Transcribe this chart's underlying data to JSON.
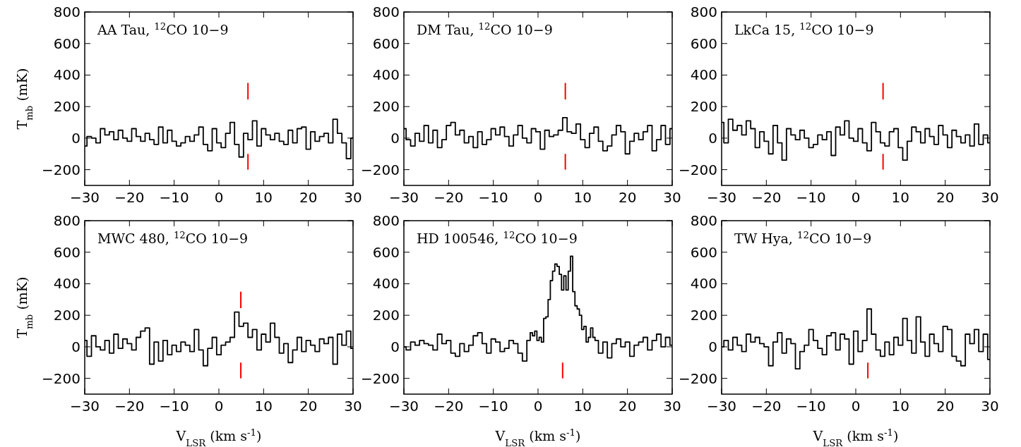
{
  "chart_data": [
    {
      "type": "step",
      "title": "AA Tau, $^{12}$CO 10−9",
      "ylabel": "T$_{mb}$ (mK)",
      "xlim": [
        -30,
        30
      ],
      "ylim": [
        -300,
        800
      ],
      "xticks": [
        -30,
        -20,
        -10,
        0,
        10,
        20,
        30
      ],
      "yticks": [
        -200,
        0,
        200,
        400,
        600,
        800
      ],
      "x": [
        -30,
        -29,
        -28,
        -27,
        -26,
        -25,
        -24,
        -23,
        -22,
        -21,
        -20,
        -19,
        -18,
        -17,
        -16,
        -15,
        -14,
        -13,
        -12,
        -11,
        -10,
        -9,
        -8,
        -7,
        -6,
        -5,
        -4,
        -3,
        -2,
        -1,
        0,
        1,
        2,
        3,
        4,
        5,
        6,
        7,
        8,
        9,
        10,
        11,
        12,
        13,
        14,
        15,
        16,
        17,
        18,
        19,
        20,
        21,
        22,
        23,
        24,
        25,
        26,
        27,
        28,
        29,
        30
      ],
      "series": [
        {
          "color": "#000000",
          "values": [
            -50,
            10,
            0,
            -30,
            60,
            20,
            40,
            -10,
            50,
            0,
            -20,
            60,
            10,
            -20,
            30,
            -10,
            -40,
            70,
            -30,
            50,
            -20,
            -50,
            -30,
            10,
            -20,
            20,
            70,
            -40,
            -80,
            60,
            -30,
            -60,
            30,
            100,
            -40,
            -120,
            30,
            -10,
            110,
            -50,
            60,
            20,
            -10,
            30,
            -20,
            -40,
            50,
            -30,
            60,
            70,
            -70,
            40,
            -20,
            10,
            30,
            -30,
            120,
            30,
            -30,
            -130,
            0
          ]
        },
        {
          "type": "line",
          "color": "#ff0000",
          "x": [
            6.5,
            6.5
          ],
          "values": [
            245,
            350
          ]
        },
        {
          "type": "line",
          "color": "#ff0000",
          "x": [
            6.5,
            6.5
          ],
          "values": [
            -200,
            -100
          ]
        }
      ]
    },
    {
      "type": "step",
      "title": "DM Tau, $^{12}$CO 10−9",
      "xlim": [
        -30,
        30
      ],
      "ylim": [
        -300,
        800
      ],
      "xticks": [
        -30,
        -20,
        -10,
        0,
        10,
        20,
        30
      ],
      "yticks": [
        -200,
        0,
        200,
        400,
        600,
        800
      ],
      "x": [
        -30,
        -29,
        -28,
        -27,
        -26,
        -25,
        -24,
        -23,
        -22,
        -21,
        -20,
        -19,
        -18,
        -17,
        -16,
        -15,
        -14,
        -13,
        -12,
        -11,
        -10,
        -9,
        -8,
        -7,
        -6,
        -5,
        -4,
        -3,
        -2,
        -1,
        0,
        1,
        2,
        3,
        4,
        5,
        6,
        7,
        8,
        9,
        10,
        11,
        12,
        13,
        14,
        15,
        16,
        17,
        18,
        19,
        20,
        21,
        22,
        23,
        24,
        25,
        26,
        27,
        28,
        29,
        30
      ],
      "series": [
        {
          "color": "#000000",
          "values": [
            60,
            -10,
            -50,
            30,
            -20,
            80,
            -30,
            50,
            -60,
            -10,
            80,
            100,
            20,
            50,
            -30,
            10,
            -60,
            40,
            -40,
            -10,
            60,
            20,
            70,
            10,
            -50,
            20,
            80,
            0,
            -30,
            60,
            40,
            -70,
            50,
            10,
            20,
            50,
            130,
            40,
            30,
            90,
            -10,
            -60,
            30,
            70,
            -20,
            -80,
            -50,
            20,
            80,
            40,
            -100,
            -20,
            30,
            -10,
            40,
            80,
            -80,
            -10,
            80,
            -40,
            60
          ]
        },
        {
          "type": "line",
          "color": "#ff0000",
          "x": [
            6.1,
            6.1
          ],
          "values": [
            245,
            350
          ]
        },
        {
          "type": "line",
          "color": "#ff0000",
          "x": [
            6.1,
            6.1
          ],
          "values": [
            -200,
            -100
          ]
        }
      ]
    },
    {
      "type": "step",
      "title": "LkCa 15, $^{12}$CO 10−9",
      "xlim": [
        -30,
        30
      ],
      "ylim": [
        -300,
        800
      ],
      "xticks": [
        -30,
        -20,
        -10,
        0,
        10,
        20,
        30
      ],
      "yticks": [
        -200,
        0,
        200,
        400,
        600,
        800
      ],
      "x": [
        -30,
        -29,
        -28,
        -27,
        -26,
        -25,
        -24,
        -23,
        -22,
        -21,
        -20,
        -19,
        -18,
        -17,
        -16,
        -15,
        -14,
        -13,
        -12,
        -11,
        -10,
        -9,
        -8,
        -7,
        -6,
        -5,
        -4,
        -3,
        -2,
        -1,
        0,
        1,
        2,
        3,
        4,
        5,
        6,
        7,
        8,
        9,
        10,
        11,
        12,
        13,
        14,
        15,
        16,
        17,
        18,
        19,
        20,
        21,
        22,
        23,
        24,
        25,
        26,
        27,
        28,
        29,
        30
      ],
      "series": [
        {
          "color": "#000000",
          "values": [
            100,
            -30,
            120,
            50,
            80,
            20,
            110,
            60,
            -60,
            40,
            -20,
            -100,
            80,
            -30,
            -140,
            60,
            20,
            -10,
            50,
            0,
            -60,
            -40,
            20,
            -10,
            40,
            -110,
            70,
            20,
            110,
            0,
            -20,
            60,
            -30,
            -80,
            100,
            40,
            -30,
            -50,
            40,
            60,
            -60,
            -140,
            -20,
            70,
            40,
            -30,
            60,
            10,
            -40,
            80,
            20,
            -60,
            50,
            10,
            -30,
            20,
            -50,
            90,
            -40,
            20,
            -30
          ]
        },
        {
          "type": "line",
          "color": "#ff0000",
          "x": [
            6.1,
            6.1
          ],
          "values": [
            245,
            350
          ]
        },
        {
          "type": "line",
          "color": "#ff0000",
          "x": [
            6.1,
            6.1
          ],
          "values": [
            -200,
            -100
          ]
        }
      ]
    },
    {
      "type": "step",
      "title": "MWC 480, $^{12}$CO 10−9",
      "xlabel": "V$_{LSR}$ (km s$^{-1}$)",
      "ylabel": "T$_{mb}$ (mK)",
      "xlim": [
        -30,
        30
      ],
      "ylim": [
        -300,
        800
      ],
      "xticks": [
        -30,
        -20,
        -10,
        0,
        10,
        20,
        30
      ],
      "yticks": [
        -200,
        0,
        200,
        400,
        600,
        800
      ],
      "x": [
        -30,
        -29,
        -28,
        -27,
        -26,
        -25,
        -24,
        -23,
        -22,
        -21,
        -20,
        -19,
        -18,
        -17,
        -16,
        -15,
        -14,
        -13,
        -12,
        -11,
        -10,
        -9,
        -8,
        -7,
        -6,
        -5,
        -4,
        -3,
        -2,
        -1,
        0,
        1,
        2,
        3,
        4,
        5,
        6,
        7,
        8,
        9,
        10,
        11,
        12,
        13,
        14,
        15,
        16,
        17,
        18,
        19,
        20,
        21,
        22,
        23,
        24,
        25,
        26,
        27,
        28,
        29,
        30
      ],
      "series": [
        {
          "color": "#000000",
          "values": [
            40,
            -60,
            70,
            0,
            -20,
            40,
            -40,
            80,
            -10,
            50,
            20,
            -20,
            60,
            100,
            120,
            -110,
            30,
            -90,
            40,
            -50,
            10,
            -30,
            30,
            10,
            -30,
            110,
            -20,
            -120,
            -10,
            60,
            -50,
            10,
            30,
            60,
            220,
            130,
            150,
            60,
            110,
            -20,
            80,
            30,
            150,
            60,
            -40,
            20,
            -100,
            -20,
            60,
            -30,
            40,
            10,
            -30,
            50,
            20,
            60,
            -110,
            80,
            10,
            100,
            -10
          ]
        },
        {
          "type": "line",
          "color": "#ff0000",
          "x": [
            4.9,
            4.9
          ],
          "values": [
            245,
            350
          ]
        },
        {
          "type": "line",
          "color": "#ff0000",
          "x": [
            4.9,
            4.9
          ],
          "values": [
            -200,
            -100
          ]
        }
      ]
    },
    {
      "type": "step",
      "title": "HD 100546, $^{12}$CO 10−9",
      "xlabel": "V$_{LSR}$ (km s$^{-1}$)",
      "xlim": [
        -30,
        30
      ],
      "ylim": [
        -300,
        800
      ],
      "xticks": [
        -30,
        -20,
        -10,
        0,
        10,
        20,
        30
      ],
      "yticks": [
        -200,
        0,
        200,
        400,
        600,
        800
      ],
      "series": [
        {
          "color": "#000000",
          "x": [
            -30,
            -29,
            -28,
            -27,
            -26,
            -25,
            -24,
            -23,
            -22,
            -21,
            -20,
            -19,
            -18,
            -17,
            -16,
            -15,
            -14,
            -13,
            -12,
            -11,
            -10,
            -9,
            -8,
            -7,
            -6,
            -5,
            -4,
            -3,
            -2,
            -1.5,
            -1,
            -0.5,
            0,
            0.5,
            1,
            1.5,
            2,
            2.5,
            3,
            3.5,
            4,
            4.5,
            5,
            5.5,
            6,
            6.5,
            7,
            7.5,
            8,
            8.5,
            9,
            9.5,
            10,
            10.5,
            11,
            11.5,
            12,
            12.5,
            13,
            14,
            15,
            16,
            17,
            18,
            19,
            20,
            21,
            22,
            23,
            24,
            25,
            26,
            27,
            28,
            29,
            30
          ],
          "values": [
            0,
            -20,
            30,
            10,
            40,
            20,
            10,
            -20,
            80,
            20,
            40,
            -40,
            -60,
            20,
            -30,
            10,
            70,
            90,
            20,
            -40,
            50,
            30,
            -30,
            -10,
            40,
            20,
            -40,
            -90,
            40,
            90,
            70,
            100,
            40,
            60,
            30,
            180,
            190,
            300,
            420,
            480,
            525,
            510,
            460,
            360,
            450,
            360,
            480,
            575,
            350,
            260,
            240,
            200,
            110,
            130,
            30,
            60,
            120,
            60,
            40,
            -40,
            30,
            -70,
            20,
            50,
            0,
            30,
            -60,
            10,
            30,
            60,
            -20,
            40,
            80,
            0,
            60,
            10
          ]
        },
        {
          "type": "line",
          "color": "#ff0000",
          "x": [
            5.5,
            5.5
          ],
          "values": [
            -200,
            -100
          ]
        }
      ]
    },
    {
      "type": "step",
      "title": "TW Hya, $^{12}$CO 10−9",
      "xlabel": "V$_{LSR}$ (km s$^{-1}$)",
      "xlim": [
        -30,
        30
      ],
      "ylim": [
        -300,
        800
      ],
      "xticks": [
        -30,
        -20,
        -10,
        0,
        10,
        20,
        30
      ],
      "yticks": [
        -200,
        0,
        200,
        400,
        600,
        800
      ],
      "x": [
        -30,
        -29,
        -28,
        -27,
        -26,
        -25,
        -24,
        -23,
        -22,
        -21,
        -20,
        -19,
        -18,
        -17,
        -16,
        -15,
        -14,
        -13,
        -12,
        -11,
        -10,
        -9,
        -8,
        -7,
        -6,
        -5,
        -4,
        -3,
        -2,
        -1,
        0,
        1,
        2,
        3,
        4,
        5,
        6,
        7,
        8,
        9,
        10,
        11,
        12,
        13,
        14,
        15,
        16,
        17,
        18,
        19,
        20,
        21,
        22,
        23,
        24,
        25,
        26,
        27,
        28,
        29,
        30
      ],
      "series": [
        {
          "color": "#000000",
          "values": [
            0,
            40,
            -20,
            60,
            10,
            -30,
            80,
            30,
            60,
            20,
            0,
            -120,
            30,
            90,
            -40,
            50,
            20,
            -140,
            -30,
            10,
            110,
            40,
            -10,
            -50,
            70,
            90,
            -20,
            80,
            50,
            -110,
            100,
            -30,
            40,
            240,
            80,
            -20,
            -60,
            30,
            -50,
            60,
            10,
            180,
            40,
            -40,
            190,
            30,
            -60,
            80,
            20,
            -30,
            130,
            110,
            -60,
            -90,
            -120,
            80,
            20,
            110,
            -30,
            80,
            -80
          ]
        },
        {
          "type": "line",
          "color": "#ff0000",
          "x": [
            2.7,
            2.7
          ],
          "values": [
            -200,
            -100
          ]
        }
      ]
    }
  ]
}
